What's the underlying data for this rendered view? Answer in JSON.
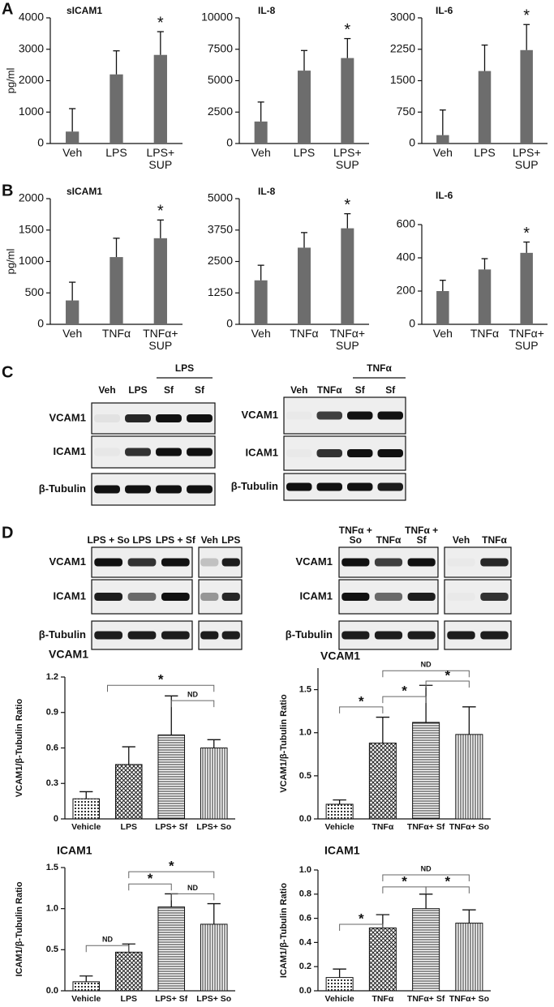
{
  "panels": [
    "A",
    "B",
    "C",
    "D"
  ],
  "blots": [
    {
      "groups": [
        [
          "Veh",
          "LPS",
          "Sf",
          "Sf"
        ]
      ],
      "bracket": "LPS",
      "rows": [
        "VCAM1",
        "ICAM1",
        "β-Tubulin"
      ]
    },
    {
      "groups": [
        [
          "Veh",
          "TNFα",
          "Sf",
          "Sf"
        ]
      ],
      "bracket": "TNFα",
      "rows": [
        "VCAM1",
        "ICAM1",
        "β-Tubulin"
      ]
    },
    {
      "groups": [
        [
          "LPS + So",
          "LPS",
          "LPS + Sf"
        ],
        [
          "Veh",
          "LPS"
        ]
      ],
      "rows": [
        "VCAM1",
        "ICAM1",
        "β-Tubulin"
      ]
    },
    {
      "groups": [
        [
          "TNFα + So",
          "TNFα",
          "TNFα + Sf"
        ],
        [
          "Veh",
          "TNFα"
        ]
      ],
      "rows": [
        "VCAM1",
        "ICAM1",
        "β-Tubulin"
      ]
    }
  ],
  "chart_data": [
    {
      "type": "bar",
      "title": "sICAM1",
      "ylabel": "pg/ml",
      "categories": [
        "Veh",
        "LPS",
        "LPS+ SUP"
      ],
      "values": [
        380,
        2200,
        2820
      ],
      "errors": [
        730,
        750,
        740
      ],
      "color": "#6d6d6d",
      "ylim": [
        0,
        4000
      ],
      "yticks": [
        0,
        1000,
        2000,
        3000,
        4000
      ],
      "annotations": [
        "*"
      ]
    },
    {
      "type": "bar",
      "title": "IL-8",
      "categories": [
        "Veh",
        "LPS",
        "LPS+ SUP"
      ],
      "values": [
        1750,
        5800,
        6800
      ],
      "errors": [
        1550,
        1600,
        1550
      ],
      "color": "#6d6d6d",
      "ylim": [
        0,
        10000
      ],
      "yticks": [
        0,
        2500,
        5000,
        7500,
        10000
      ],
      "annotations": [
        "*"
      ]
    },
    {
      "type": "bar",
      "title": "IL-6",
      "categories": [
        "Veh",
        "LPS",
        "LPS+ SUP"
      ],
      "values": [
        200,
        1730,
        2230
      ],
      "errors": [
        600,
        620,
        610
      ],
      "color": "#6d6d6d",
      "ylim": [
        0,
        3000
      ],
      "yticks": [
        0,
        750,
        1500,
        2250,
        3000
      ],
      "annotations": [
        "*"
      ]
    },
    {
      "type": "bar",
      "title": "sICAM1",
      "ylabel": "pg/ml",
      "categories": [
        "Veh",
        "TNFα",
        "TNFα+ SUP"
      ],
      "values": [
        380,
        1070,
        1370
      ],
      "errors": [
        290,
        300,
        290
      ],
      "color": "#6d6d6d",
      "ylim": [
        0,
        2000
      ],
      "yticks": [
        0,
        500,
        1000,
        1500,
        2000
      ],
      "annotations": [
        "*"
      ]
    },
    {
      "type": "bar",
      "title": "IL-8",
      "categories": [
        "Veh",
        "TNFα",
        "TNFα+ SUP"
      ],
      "values": [
        1750,
        3050,
        3820
      ],
      "errors": [
        600,
        600,
        580
      ],
      "color": "#6d6d6d",
      "ylim": [
        0,
        5000
      ],
      "yticks": [
        0,
        1250,
        2500,
        3750,
        5000
      ],
      "annotations": [
        "*"
      ]
    },
    {
      "type": "bar",
      "title": "IL-6",
      "categories": [
        "Veh",
        "TNFα",
        "TNFα+ SUP"
      ],
      "values": [
        200,
        330,
        430
      ],
      "errors": [
        65,
        65,
        65
      ],
      "color": "#6d6d6d",
      "ylim": [
        0,
        600
      ],
      "yticks": [
        0,
        200,
        400,
        600
      ],
      "annotations": [
        "*"
      ]
    },
    {
      "type": "bar",
      "title": "VCAM1",
      "ylabel": "VCAM1/β-Tubulin Ratio",
      "categories": [
        "Vehicle",
        "LPS",
        "LPS+ Sf",
        "LPS+ So"
      ],
      "values": [
        0.17,
        0.46,
        0.71,
        0.6
      ],
      "errors": [
        0.06,
        0.15,
        0.33,
        0.07
      ],
      "color": "#ffffff",
      "pattern": [
        "dots",
        "crosshatch",
        "horizontal",
        "vertical"
      ],
      "ylim": [
        0,
        1.2
      ],
      "yticks": [
        0,
        0.3,
        0.6,
        0.9,
        1.2
      ],
      "annotations": [
        "*",
        "ND"
      ]
    },
    {
      "type": "bar",
      "title": "VCAM1",
      "ylabel": "VCAM1/β-Tubulin Ratio",
      "categories": [
        "Vehicle",
        "TNFα",
        "TNFα+ Sf",
        "TNFα+ So"
      ],
      "values": [
        0.17,
        0.88,
        1.12,
        0.98
      ],
      "errors": [
        0.05,
        0.3,
        0.43,
        0.32
      ],
      "color": "#ffffff",
      "pattern": [
        "dots",
        "crosshatch",
        "horizontal",
        "vertical"
      ],
      "ylim": [
        0,
        1.75
      ],
      "yticks": [
        {
          "value": 0,
          "label": "0.0"
        },
        {
          "value": 0.5,
          "label": "0.5"
        },
        {
          "value": 1,
          "label": "1.0"
        },
        {
          "value": 1.5,
          "label": "1.5"
        }
      ],
      "annotations": [
        "*",
        "*",
        "ND",
        "*"
      ]
    },
    {
      "type": "bar",
      "title": "ICAM1",
      "ylabel": "ICAM1/β-Tubulin Ratio",
      "categories": [
        "Vehicle",
        "LPS",
        "LPS+ Sf",
        "LPS+ So"
      ],
      "values": [
        0.11,
        0.47,
        1.02,
        0.81
      ],
      "errors": [
        0.07,
        0.1,
        0.16,
        0.25
      ],
      "color": "#ffffff",
      "pattern": [
        "dots",
        "crosshatch",
        "horizontal",
        "vertical"
      ],
      "ylim": [
        0,
        1.5
      ],
      "yticks": [
        {
          "value": 0,
          "label": "0.0"
        },
        {
          "value": 0.5,
          "label": "0.5"
        },
        {
          "value": 1,
          "label": "1.0"
        },
        {
          "value": 1.5,
          "label": "1.5"
        }
      ],
      "annotations": [
        "ND",
        "*",
        "*",
        "ND"
      ]
    },
    {
      "type": "bar",
      "title": "ICAM1",
      "ylabel": "ICAM1/β-Tubulin Ratio",
      "categories": [
        "Vehicle",
        "TNFα",
        "TNFα+ Sf",
        "TNFα+ So"
      ],
      "values": [
        0.11,
        0.52,
        0.68,
        0.56
      ],
      "errors": [
        0.07,
        0.11,
        0.12,
        0.11
      ],
      "color": "#ffffff",
      "pattern": [
        "dots",
        "crosshatch",
        "horizontal",
        "vertical"
      ],
      "ylim": [
        0,
        1
      ],
      "yticks": [
        {
          "value": 0,
          "label": "0.0"
        },
        {
          "value": 0.2,
          "label": "0.2"
        },
        {
          "value": 0.4,
          "label": "0.4"
        },
        {
          "value": 0.6,
          "label": "0.6"
        },
        {
          "value": 0.8,
          "label": "0.8"
        },
        {
          "value": 1,
          "label": "1.0"
        }
      ],
      "annotations": [
        "*",
        "*",
        "ND",
        "*"
      ]
    }
  ]
}
